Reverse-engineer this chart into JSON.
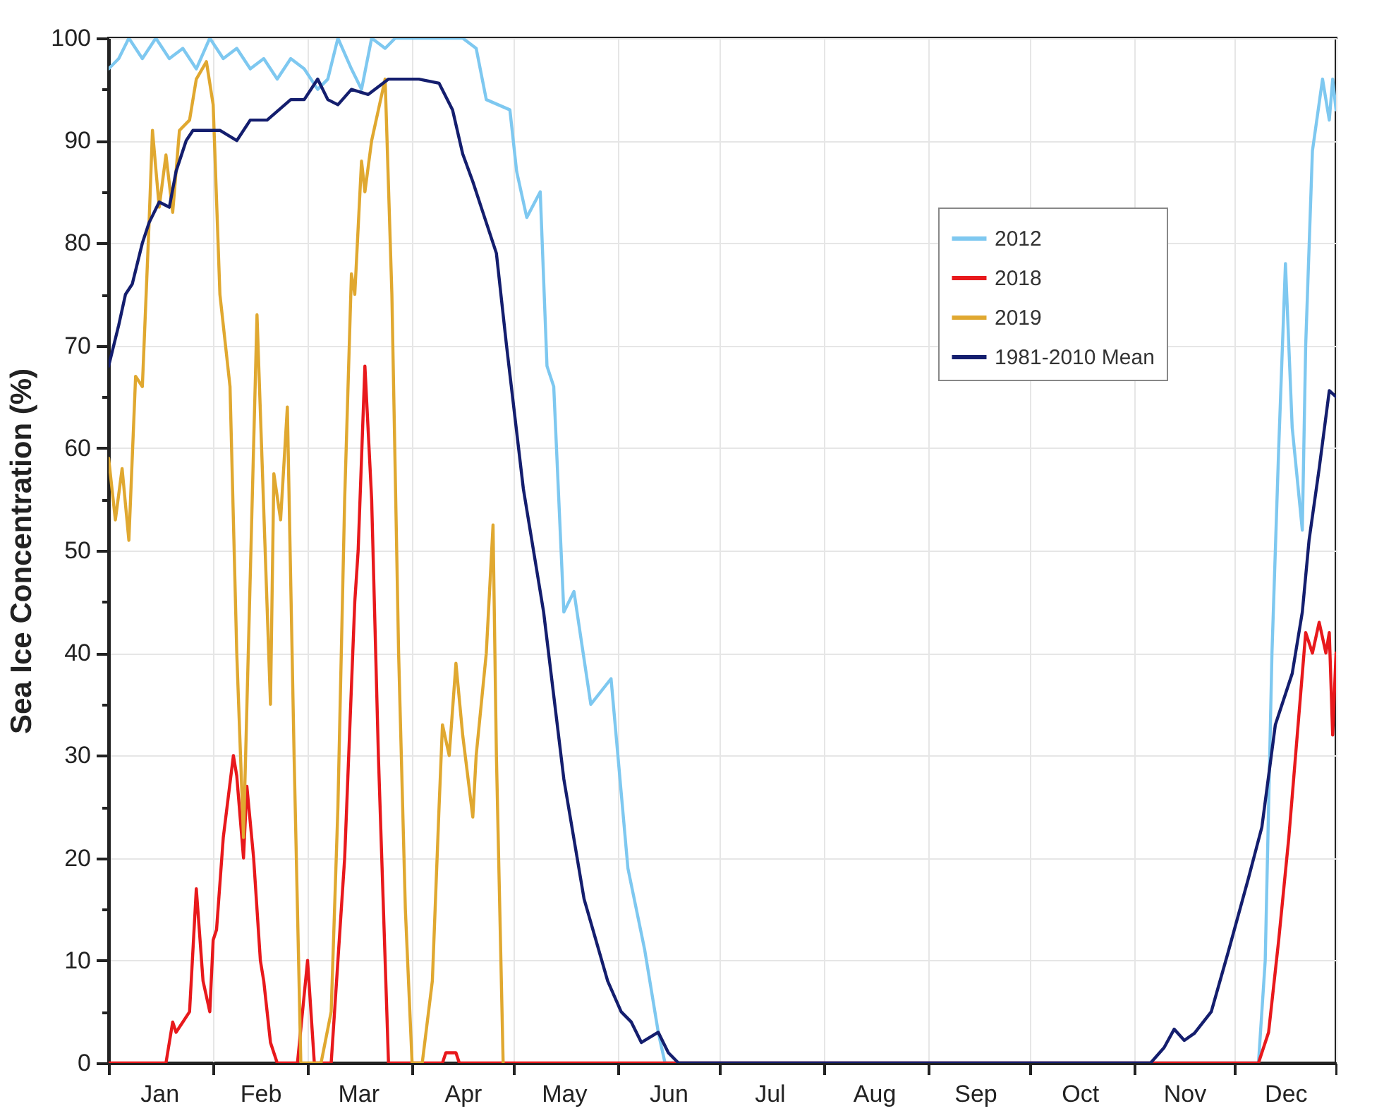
{
  "chart_data": {
    "type": "line",
    "ylabel": "Sea Ice Concentration (%)",
    "xlim": [
      "--01-01",
      "--12-31"
    ],
    "ylim": [
      0,
      100
    ],
    "xticks": [
      {
        "value": "--01-01",
        "label": null
      },
      {
        "value": "--01-16",
        "label": "Jan"
      },
      {
        "value": "--02-01",
        "label": null
      },
      {
        "value": "--02-15",
        "label": "Feb"
      },
      {
        "value": "--03-01",
        "label": null
      },
      {
        "value": "--03-16",
        "label": "Mar"
      },
      {
        "value": "--04-01",
        "label": null
      },
      {
        "value": "--04-16",
        "label": "Apr"
      },
      {
        "value": "--05-01",
        "label": null
      },
      {
        "value": "--05-16",
        "label": "May"
      },
      {
        "value": "--06-01",
        "label": null
      },
      {
        "value": "--06-16",
        "label": "Jun"
      },
      {
        "value": "--07-01",
        "label": null
      },
      {
        "value": "--07-16",
        "label": "Jul"
      },
      {
        "value": "--08-01",
        "label": null
      },
      {
        "value": "--08-16",
        "label": "Aug"
      },
      {
        "value": "--09-01",
        "label": null
      },
      {
        "value": "--09-15",
        "label": "Sep"
      },
      {
        "value": "--10-01",
        "label": null
      },
      {
        "value": "--10-16",
        "label": "Oct"
      },
      {
        "value": "--11-01",
        "label": null
      },
      {
        "value": "--11-16",
        "label": "Nov"
      },
      {
        "value": "--12-01",
        "label": null
      },
      {
        "value": "--12-16",
        "label": "Dec"
      },
      {
        "value": "--12-31",
        "label": null
      }
    ],
    "yticks": [
      0,
      {
        "value": 5,
        "label": null
      },
      10,
      {
        "value": 15,
        "label": null
      },
      20,
      {
        "value": 25,
        "label": null
      },
      30,
      {
        "value": 35,
        "label": null
      },
      40,
      {
        "value": 45,
        "label": null
      },
      50,
      {
        "value": 55,
        "label": null
      },
      60,
      {
        "value": 65,
        "label": null
      },
      70,
      {
        "value": 75,
        "label": null
      },
      80,
      {
        "value": 85,
        "label": null
      },
      90,
      {
        "value": 95,
        "label": null
      },
      100
    ],
    "grid": true,
    "legend": "top right",
    "line_style": "solid",
    "series": [
      {
        "name": "2012",
        "color": "#7ec8f0",
        "x": [
          "--01-01",
          "--01-04",
          "--01-07",
          "--01-11",
          "--01-15",
          "--01-19",
          "--01-23",
          "--01-27",
          "--01-31",
          "--02-04",
          "--02-08",
          "--02-12",
          "--02-16",
          "--02-20",
          "--02-24",
          "--02-28",
          "--03-04",
          "--03-07",
          "--03-10",
          "--03-14",
          "--03-17",
          "--03-20",
          "--03-24",
          "--03-27",
          "--04-03",
          "--04-11",
          "--04-16",
          "--04-20",
          "--04-23",
          "--04-30",
          "--05-02",
          "--05-05",
          "--05-09",
          "--05-11",
          "--05-13",
          "--05-16",
          "--05-19",
          "--05-24",
          "--05-30",
          "--06-04",
          "--06-09",
          "--06-13",
          "--06-15",
          "--12-08",
          "--12-10",
          "--12-12",
          "--12-14",
          "--12-16",
          "--12-18",
          "--12-21",
          "--12-22",
          "--12-24",
          "--12-27",
          "--12-29",
          "--12-30",
          "--12-31"
        ],
        "values": [
          97,
          98,
          100,
          98,
          100,
          98,
          99,
          97,
          100,
          98,
          99,
          97,
          98,
          96,
          98,
          97,
          95,
          96,
          100,
          97,
          95,
          100,
          99,
          100,
          100,
          100,
          100,
          99,
          94,
          93,
          87,
          82.5,
          85,
          68,
          66,
          44,
          46,
          35,
          37.5,
          19,
          11,
          3,
          0,
          0,
          10,
          40,
          60,
          78,
          62,
          52,
          70,
          89,
          96,
          92,
          96,
          93
        ]
      },
      {
        "name": "2018",
        "color": "#e8191c",
        "x": [
          "--01-01",
          "--01-18",
          "--01-20",
          "--01-21",
          "--01-23",
          "--01-25",
          "--01-27",
          "--01-29",
          "--01-31",
          "--02-01",
          "--02-02",
          "--02-04",
          "--02-07",
          "--02-08",
          "--02-10",
          "--02-11",
          "--02-13",
          "--02-15",
          "--02-16",
          "--02-18",
          "--02-20",
          "--02-26",
          "--03-01",
          "--03-03",
          "--03-08",
          "--03-12",
          "--03-15",
          "--03-16",
          "--03-18",
          "--03-20",
          "--03-22",
          "--03-25",
          "--04-10",
          "--04-11",
          "--04-14",
          "--04-15",
          "--12-08",
          "--12-11",
          "--12-14",
          "--12-17",
          "--12-19",
          "--12-21",
          "--12-22",
          "--12-24",
          "--12-26",
          "--12-28",
          "--12-29",
          "--12-30",
          "--12-31"
        ],
        "values": [
          0,
          0,
          4,
          3,
          4,
          5,
          17,
          8,
          5,
          12,
          13,
          22,
          30,
          28,
          20,
          27,
          20,
          10,
          8,
          2,
          0,
          0,
          10,
          0,
          0,
          20,
          45,
          50,
          68,
          55,
          30,
          0,
          0,
          1,
          1,
          0,
          0,
          3,
          12,
          22,
          30,
          38,
          42,
          40,
          43,
          40,
          42,
          32,
          40
        ]
      },
      {
        "name": "2019",
        "color": "#e0a830",
        "x": [
          "--01-01",
          "--01-03",
          "--01-05",
          "--01-07",
          "--01-09",
          "--01-11",
          "--01-13",
          "--01-14",
          "--01-16",
          "--01-18",
          "--01-20",
          "--01-22",
          "--01-25",
          "--01-27",
          "--01-30",
          "--02-01",
          "--02-03",
          "--02-06",
          "--02-08",
          "--02-10",
          "--02-14",
          "--02-18",
          "--02-19",
          "--02-21",
          "--02-23",
          "--02-25",
          "--02-27",
          "--03-05",
          "--03-08",
          "--03-10",
          "--03-12",
          "--03-14",
          "--03-15",
          "--03-17",
          "--03-18",
          "--03-20",
          "--03-22",
          "--03-24",
          "--03-26",
          "--03-28",
          "--03-30",
          "--04-01",
          "--04-04",
          "--04-07",
          "--04-09",
          "--04-10",
          "--04-12",
          "--04-14",
          "--04-16",
          "--04-19",
          "--04-20",
          "--04-23",
          "--04-25",
          "--04-26",
          "--04-28"
        ],
        "values": [
          59,
          53,
          58,
          51,
          67,
          66,
          82,
          91,
          83.5,
          88.6,
          83,
          91,
          92,
          96,
          97.7,
          93.5,
          75,
          66,
          40,
          22,
          73,
          35,
          57.5,
          53,
          64,
          30,
          0,
          0,
          5,
          25,
          55,
          77,
          75,
          88,
          85,
          90,
          93,
          96,
          75,
          40,
          15,
          0,
          0,
          8,
          25,
          33,
          30,
          39,
          32,
          24,
          30,
          40,
          52.5,
          30,
          0
        ]
      },
      {
        "name": "1981-2010 Mean",
        "color": "#141e6e",
        "x": [
          "--01-01",
          "--01-04",
          "--01-06",
          "--01-08",
          "--01-11",
          "--01-13",
          "--01-16",
          "--01-19",
          "--01-21",
          "--01-24",
          "--01-26",
          "--01-31",
          "--02-03",
          "--02-08",
          "--02-12",
          "--02-17",
          "--02-24",
          "--02-28",
          "--03-04",
          "--03-07",
          "--03-10",
          "--03-14",
          "--03-19",
          "--03-25",
          "--03-30",
          "--04-03",
          "--04-09",
          "--04-13",
          "--04-16",
          "--04-19",
          "--04-22",
          "--04-26",
          "--04-29",
          "--05-04",
          "--05-10",
          "--05-16",
          "--05-22",
          "--05-29",
          "--06-02",
          "--06-05",
          "--06-08",
          "--06-13",
          "--06-16",
          "--06-19",
          "--11-06",
          "--11-10",
          "--11-13",
          "--11-16",
          "--11-19",
          "--11-24",
          "--11-29",
          "--12-05",
          "--12-09",
          "--12-13",
          "--12-16",
          "--12-18",
          "--12-21",
          "--12-23",
          "--12-26",
          "--12-29",
          "--12-31"
        ],
        "values": [
          68,
          72,
          75,
          76,
          80,
          82,
          84,
          83.5,
          87,
          90,
          91,
          91,
          91,
          90,
          92,
          92,
          94,
          94,
          96,
          94,
          93.5,
          95,
          94.5,
          96,
          96,
          96,
          95.6,
          93,
          88.7,
          86,
          83,
          79,
          70,
          56,
          44,
          27.7,
          16,
          8,
          5,
          4,
          2,
          3,
          1,
          0,
          0,
          1.5,
          3.3,
          2.2,
          2.9,
          5,
          10.8,
          18,
          23,
          33,
          36,
          38,
          44,
          51,
          58,
          65.6,
          65
        ]
      }
    ]
  }
}
